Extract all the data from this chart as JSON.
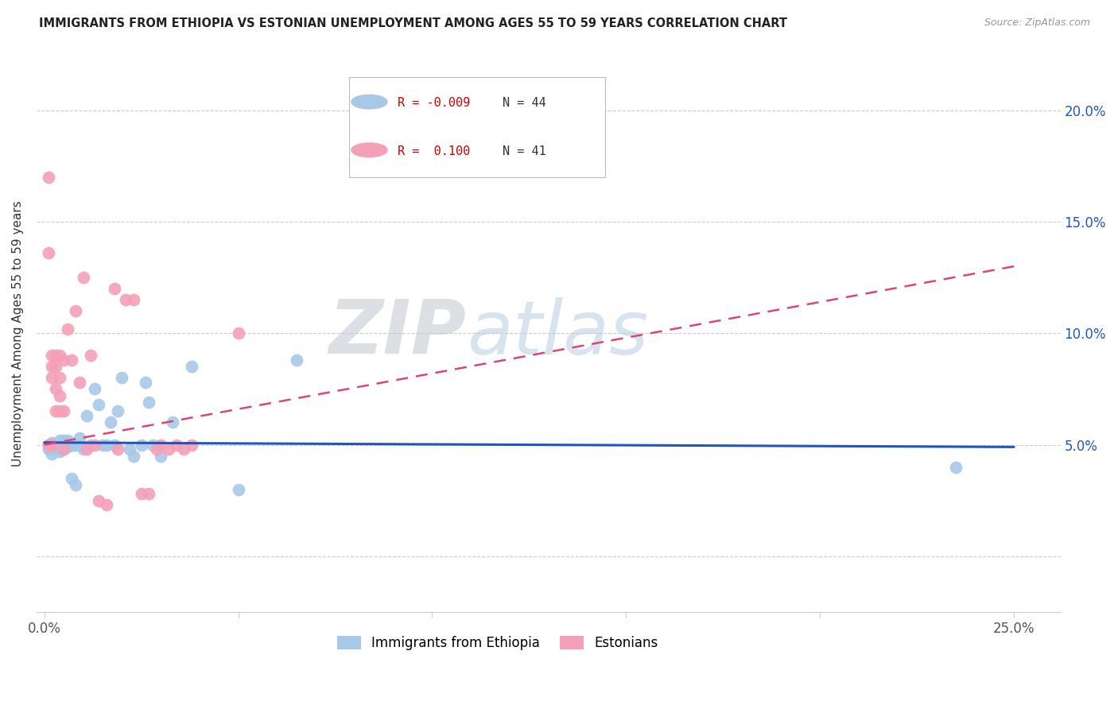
{
  "title": "IMMIGRANTS FROM ETHIOPIA VS ESTONIAN UNEMPLOYMENT AMONG AGES 55 TO 59 YEARS CORRELATION CHART",
  "source": "Source: ZipAtlas.com",
  "ylabel": "Unemployment Among Ages 55 to 59 years",
  "xlim": [
    -0.002,
    0.262
  ],
  "ylim": [
    -0.025,
    0.225
  ],
  "xticks": [
    0.0,
    0.05,
    0.1,
    0.15,
    0.2,
    0.25
  ],
  "xticklabels": [
    "0.0%",
    "",
    "",
    "",
    "",
    "25.0%"
  ],
  "yticks": [
    0.0,
    0.05,
    0.1,
    0.15,
    0.2
  ],
  "right_yticklabels": [
    "5.0%",
    "10.0%",
    "15.0%",
    "20.0%"
  ],
  "right_yticks": [
    0.05,
    0.1,
    0.15,
    0.2
  ],
  "blue_color": "#a8c8e8",
  "pink_color": "#f4a0b8",
  "blue_line_color": "#2255bb",
  "pink_line_color": "#dd4477",
  "blue_R": -0.009,
  "blue_N": 44,
  "pink_R": 0.1,
  "pink_N": 41,
  "watermark_zip": "ZIP",
  "watermark_atlas": "atlas",
  "blue_trend_x": [
    0.0,
    0.25
  ],
  "blue_trend_y": [
    0.051,
    0.049
  ],
  "pink_trend_x": [
    0.0,
    0.25
  ],
  "pink_trend_y": [
    0.05,
    0.13
  ],
  "blue_scatter_x": [
    0.001,
    0.001,
    0.002,
    0.002,
    0.003,
    0.003,
    0.004,
    0.004,
    0.004,
    0.005,
    0.005,
    0.005,
    0.006,
    0.006,
    0.006,
    0.007,
    0.007,
    0.008,
    0.008,
    0.009,
    0.009,
    0.01,
    0.011,
    0.012,
    0.013,
    0.014,
    0.015,
    0.016,
    0.017,
    0.018,
    0.019,
    0.02,
    0.022,
    0.023,
    0.025,
    0.026,
    0.027,
    0.028,
    0.03,
    0.033,
    0.038,
    0.05,
    0.065,
    0.235
  ],
  "blue_scatter_y": [
    0.05,
    0.048,
    0.051,
    0.046,
    0.05,
    0.048,
    0.05,
    0.052,
    0.047,
    0.05,
    0.048,
    0.052,
    0.049,
    0.05,
    0.052,
    0.05,
    0.035,
    0.05,
    0.032,
    0.05,
    0.053,
    0.048,
    0.063,
    0.05,
    0.075,
    0.068,
    0.05,
    0.05,
    0.06,
    0.05,
    0.065,
    0.08,
    0.048,
    0.045,
    0.05,
    0.078,
    0.069,
    0.05,
    0.045,
    0.06,
    0.085,
    0.03,
    0.088,
    0.04
  ],
  "pink_scatter_x": [
    0.001,
    0.001,
    0.001,
    0.002,
    0.002,
    0.002,
    0.002,
    0.003,
    0.003,
    0.003,
    0.003,
    0.004,
    0.004,
    0.004,
    0.004,
    0.005,
    0.005,
    0.005,
    0.006,
    0.007,
    0.008,
    0.009,
    0.01,
    0.011,
    0.012,
    0.013,
    0.014,
    0.016,
    0.018,
    0.019,
    0.021,
    0.023,
    0.025,
    0.027,
    0.029,
    0.03,
    0.032,
    0.034,
    0.036,
    0.038,
    0.05
  ],
  "pink_scatter_y": [
    0.17,
    0.136,
    0.05,
    0.09,
    0.085,
    0.08,
    0.05,
    0.09,
    0.085,
    0.075,
    0.065,
    0.09,
    0.08,
    0.072,
    0.065,
    0.088,
    0.065,
    0.048,
    0.102,
    0.088,
    0.11,
    0.078,
    0.125,
    0.048,
    0.09,
    0.05,
    0.025,
    0.023,
    0.12,
    0.048,
    0.115,
    0.115,
    0.028,
    0.028,
    0.048,
    0.05,
    0.048,
    0.05,
    0.048,
    0.05,
    0.1
  ],
  "legend_R_blue": "R = -0.009",
  "legend_N_blue": "N = 44",
  "legend_R_pink": "R =  0.100",
  "legend_N_pink": "N = 41"
}
